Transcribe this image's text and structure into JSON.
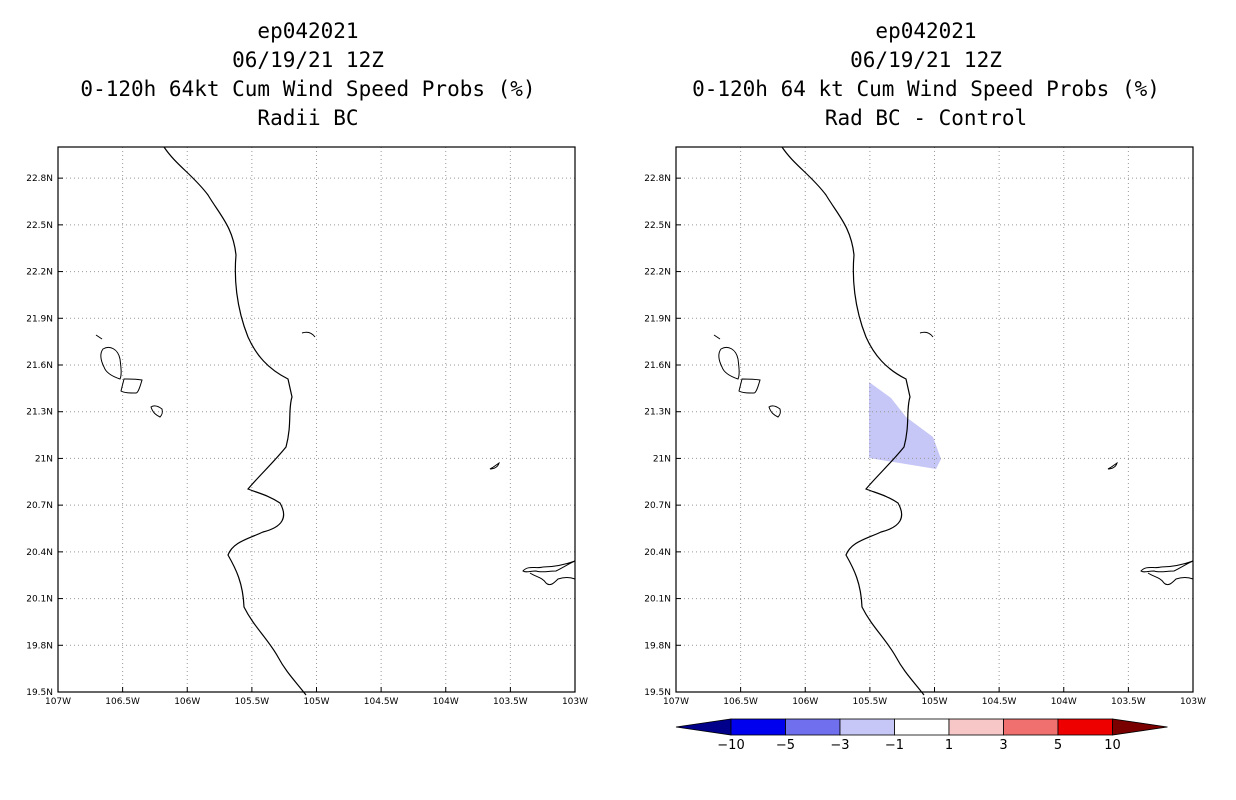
{
  "panels": [
    {
      "id": "left",
      "title_line1": "ep042021",
      "title_line2": "06/19/21 12Z",
      "title_line3": "0-120h 64kt Cum Wind Speed Probs (%)",
      "title_line4": "Radii BC"
    },
    {
      "id": "right",
      "title_line1": "ep042021",
      "title_line2": "06/19/21 12Z",
      "title_line3": "0-120h 64 kt Cum Wind Speed Probs (%)",
      "title_line4": "Rad BC - Control"
    }
  ],
  "axes": {
    "lat_labels": [
      "22.8N",
      "22.5N",
      "22.2N",
      "21.9N",
      "21.6N",
      "21.3N",
      "21N",
      "20.7N",
      "20.4N",
      "20.1N",
      "19.8N",
      "19.5N"
    ],
    "lon_labels": [
      "107W",
      "106.5W",
      "106W",
      "105.5W",
      "105W",
      "104.5W",
      "104W",
      "103.5W",
      "103W"
    ],
    "lat_range": [
      19.5,
      23.0
    ],
    "lon_range": [
      -107,
      -103
    ]
  },
  "colorbar": {
    "labels": [
      "-10",
      "-5",
      "-3",
      "-1",
      "1",
      "3",
      "5",
      "10"
    ],
    "colors": [
      "#00008b",
      "#0000ee",
      "#7070ee",
      "#c6c6f7",
      "#ffffff",
      "#f7c6c6",
      "#f07070",
      "#ee0000",
      "#7a0000"
    ]
  },
  "anomaly_region": {
    "bin": "-3 to -1",
    "color": "#c6c6f7"
  }
}
